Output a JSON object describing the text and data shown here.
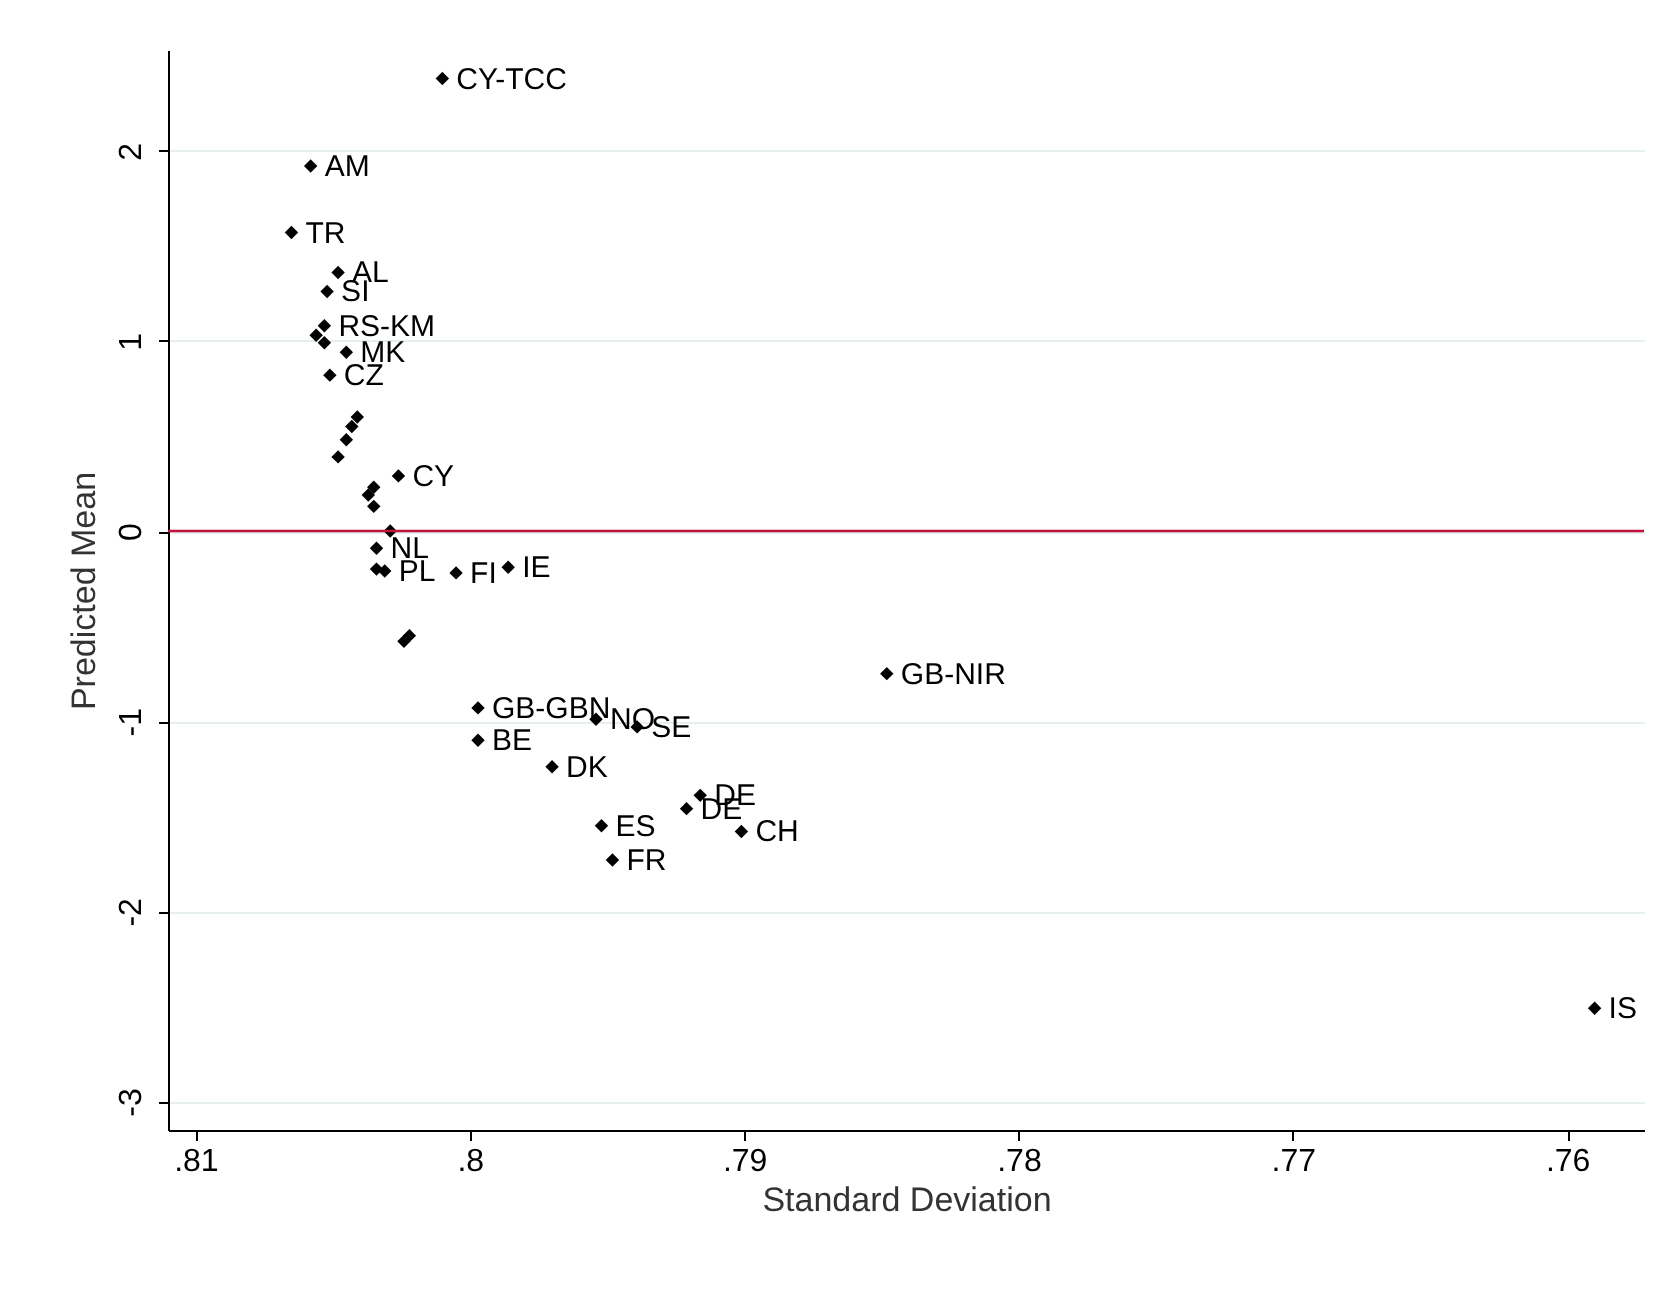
{
  "chart_data": {
    "type": "scatter",
    "xlabel": "Standard Deviation",
    "ylabel": "Predicted Mean",
    "xlim": [
      0.811,
      0.7572
    ],
    "ylim": [
      -3.15,
      2.53
    ],
    "xticks": [
      {
        "value": 0.81,
        "label": ".81"
      },
      {
        "value": 0.8,
        "label": ".8"
      },
      {
        "value": 0.79,
        "label": ".79"
      },
      {
        "value": 0.78,
        "label": ".78"
      },
      {
        "value": 0.77,
        "label": ".77"
      },
      {
        "value": 0.76,
        "label": ".76"
      }
    ],
    "yticks": [
      -3,
      -2,
      -1,
      0,
      1,
      2
    ],
    "grid": "y",
    "marker": "diamond",
    "series": [
      {
        "color": "#000000",
        "x": [
          0.801,
          0.8058,
          0.8065,
          0.8048,
          0.8052,
          0.8053,
          0.8056,
          0.8053,
          0.8045,
          0.8051,
          0.8041,
          0.8043,
          0.8045,
          0.8048,
          0.8035,
          0.8037,
          0.8035,
          0.8026,
          0.8029,
          0.8034,
          0.8034,
          0.8031,
          0.8005,
          0.7986,
          0.8022,
          0.8024,
          0.7997,
          0.7954,
          0.7939,
          0.7997,
          0.797,
          0.7916,
          0.7921,
          0.7901,
          0.7952,
          0.7948,
          0.7848,
          0.759
        ],
        "values": [
          2.38,
          1.92,
          1.57,
          1.36,
          1.26,
          1.08,
          1.03,
          0.99,
          0.94,
          0.82,
          0.6,
          0.55,
          0.48,
          0.39,
          0.23,
          0.19,
          0.13,
          0.29,
          0.0,
          -0.09,
          -0.2,
          -0.21,
          -0.22,
          -0.19,
          -0.55,
          -0.58,
          -0.93,
          -0.99,
          -1.03,
          -1.1,
          -1.24,
          -1.39,
          -1.46,
          -1.58,
          -1.55,
          -1.73,
          -0.75,
          -2.51
        ]
      }
    ],
    "ref_lines": [
      {
        "axis": "y",
        "value": 0,
        "color": "#c0143c"
      }
    ],
    "annotations": [
      {
        "text": "CY-TCC",
        "x": 0.801,
        "y": 2.38
      },
      {
        "text": "AM",
        "x": 0.8058,
        "y": 1.92
      },
      {
        "text": "TR",
        "x": 0.8065,
        "y": 1.57
      },
      {
        "text": "AL",
        "x": 0.8048,
        "y": 1.36
      },
      {
        "text": "SI",
        "x": 0.8052,
        "y": 1.26
      },
      {
        "text": "RS-KM",
        "x": 0.8053,
        "y": 1.08
      },
      {
        "text": "MK",
        "x": 0.8045,
        "y": 0.94
      },
      {
        "text": "CZ",
        "x": 0.8051,
        "y": 0.82
      },
      {
        "text": "CY",
        "x": 0.8026,
        "y": 0.29
      },
      {
        "text": "NL",
        "x": 0.8034,
        "y": -0.09
      },
      {
        "text": "PL",
        "x": 0.8031,
        "y": -0.21
      },
      {
        "text": "FI",
        "x": 0.8005,
        "y": -0.22
      },
      {
        "text": "IE",
        "x": 0.7986,
        "y": -0.19
      },
      {
        "text": "GB-GBN",
        "x": 0.7997,
        "y": -0.93
      },
      {
        "text": "NO",
        "x": 0.7954,
        "y": -0.99
      },
      {
        "text": "SE",
        "x": 0.7939,
        "y": -1.03
      },
      {
        "text": "BE",
        "x": 0.7997,
        "y": -1.1
      },
      {
        "text": "DK",
        "x": 0.797,
        "y": -1.24
      },
      {
        "text": "DE",
        "x": 0.7916,
        "y": -1.39
      },
      {
        "text": "DE",
        "x": 0.7921,
        "y": -1.46
      },
      {
        "text": "CH",
        "x": 0.7901,
        "y": -1.58
      },
      {
        "text": "ES",
        "x": 0.7952,
        "y": -1.55
      },
      {
        "text": "FR",
        "x": 0.7948,
        "y": -1.73
      },
      {
        "text": "GB-NIR",
        "x": 0.7848,
        "y": -0.75
      },
      {
        "text": "IS",
        "x": 0.759,
        "y": -2.51
      }
    ]
  }
}
